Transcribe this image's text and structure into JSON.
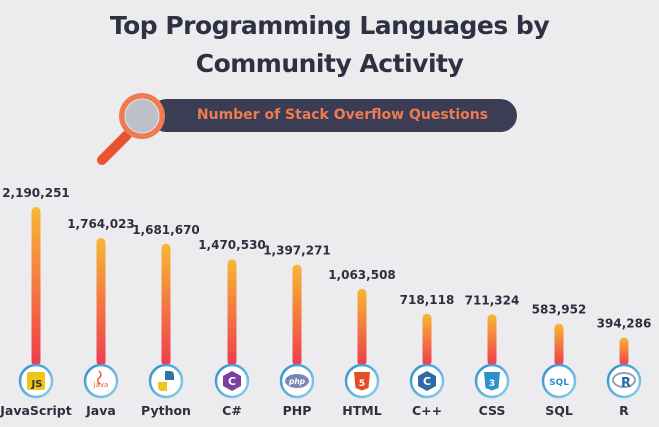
{
  "title_line1": "Top Programming Languages by",
  "title_line2": "Community Activity",
  "subtitle": "Number of Stack Overflow Questions",
  "colors": {
    "background": "#ececef",
    "pill": "#3a3d53",
    "accent": "#f07a52",
    "bar_top": "#f7b733",
    "bar_bottom": "#ef3b4f",
    "icon_ring": "#2f8fc9"
  },
  "chart_data": {
    "type": "bar",
    "title": "Top Programming Languages by Community Activity",
    "subtitle": "Number of Stack Overflow Questions",
    "categories": [
      "JavaScript",
      "Java",
      "Python",
      "C#",
      "PHP",
      "HTML",
      "C++",
      "CSS",
      "SQL",
      "R"
    ],
    "values": [
      2190251,
      1764023,
      1681670,
      1470530,
      1397271,
      1063508,
      718118,
      711324,
      583952,
      394286
    ],
    "value_labels": [
      "2,190,251",
      "1,764,023",
      "1,681,670",
      "1,470,530",
      "1,397,271",
      "1,063,508",
      "718,118",
      "711,324",
      "583,952",
      "394,286"
    ],
    "icons": [
      "javascript-icon",
      "java-icon",
      "python-icon",
      "csharp-icon",
      "php-icon",
      "html5-icon",
      "cpp-icon",
      "css3-icon",
      "sql-icon",
      "r-icon"
    ],
    "icon_texts": [
      "JS",
      "java",
      "",
      "C",
      "php",
      "5",
      "C",
      "3",
      "SQL",
      "R"
    ],
    "grid": false,
    "legend": "none"
  }
}
